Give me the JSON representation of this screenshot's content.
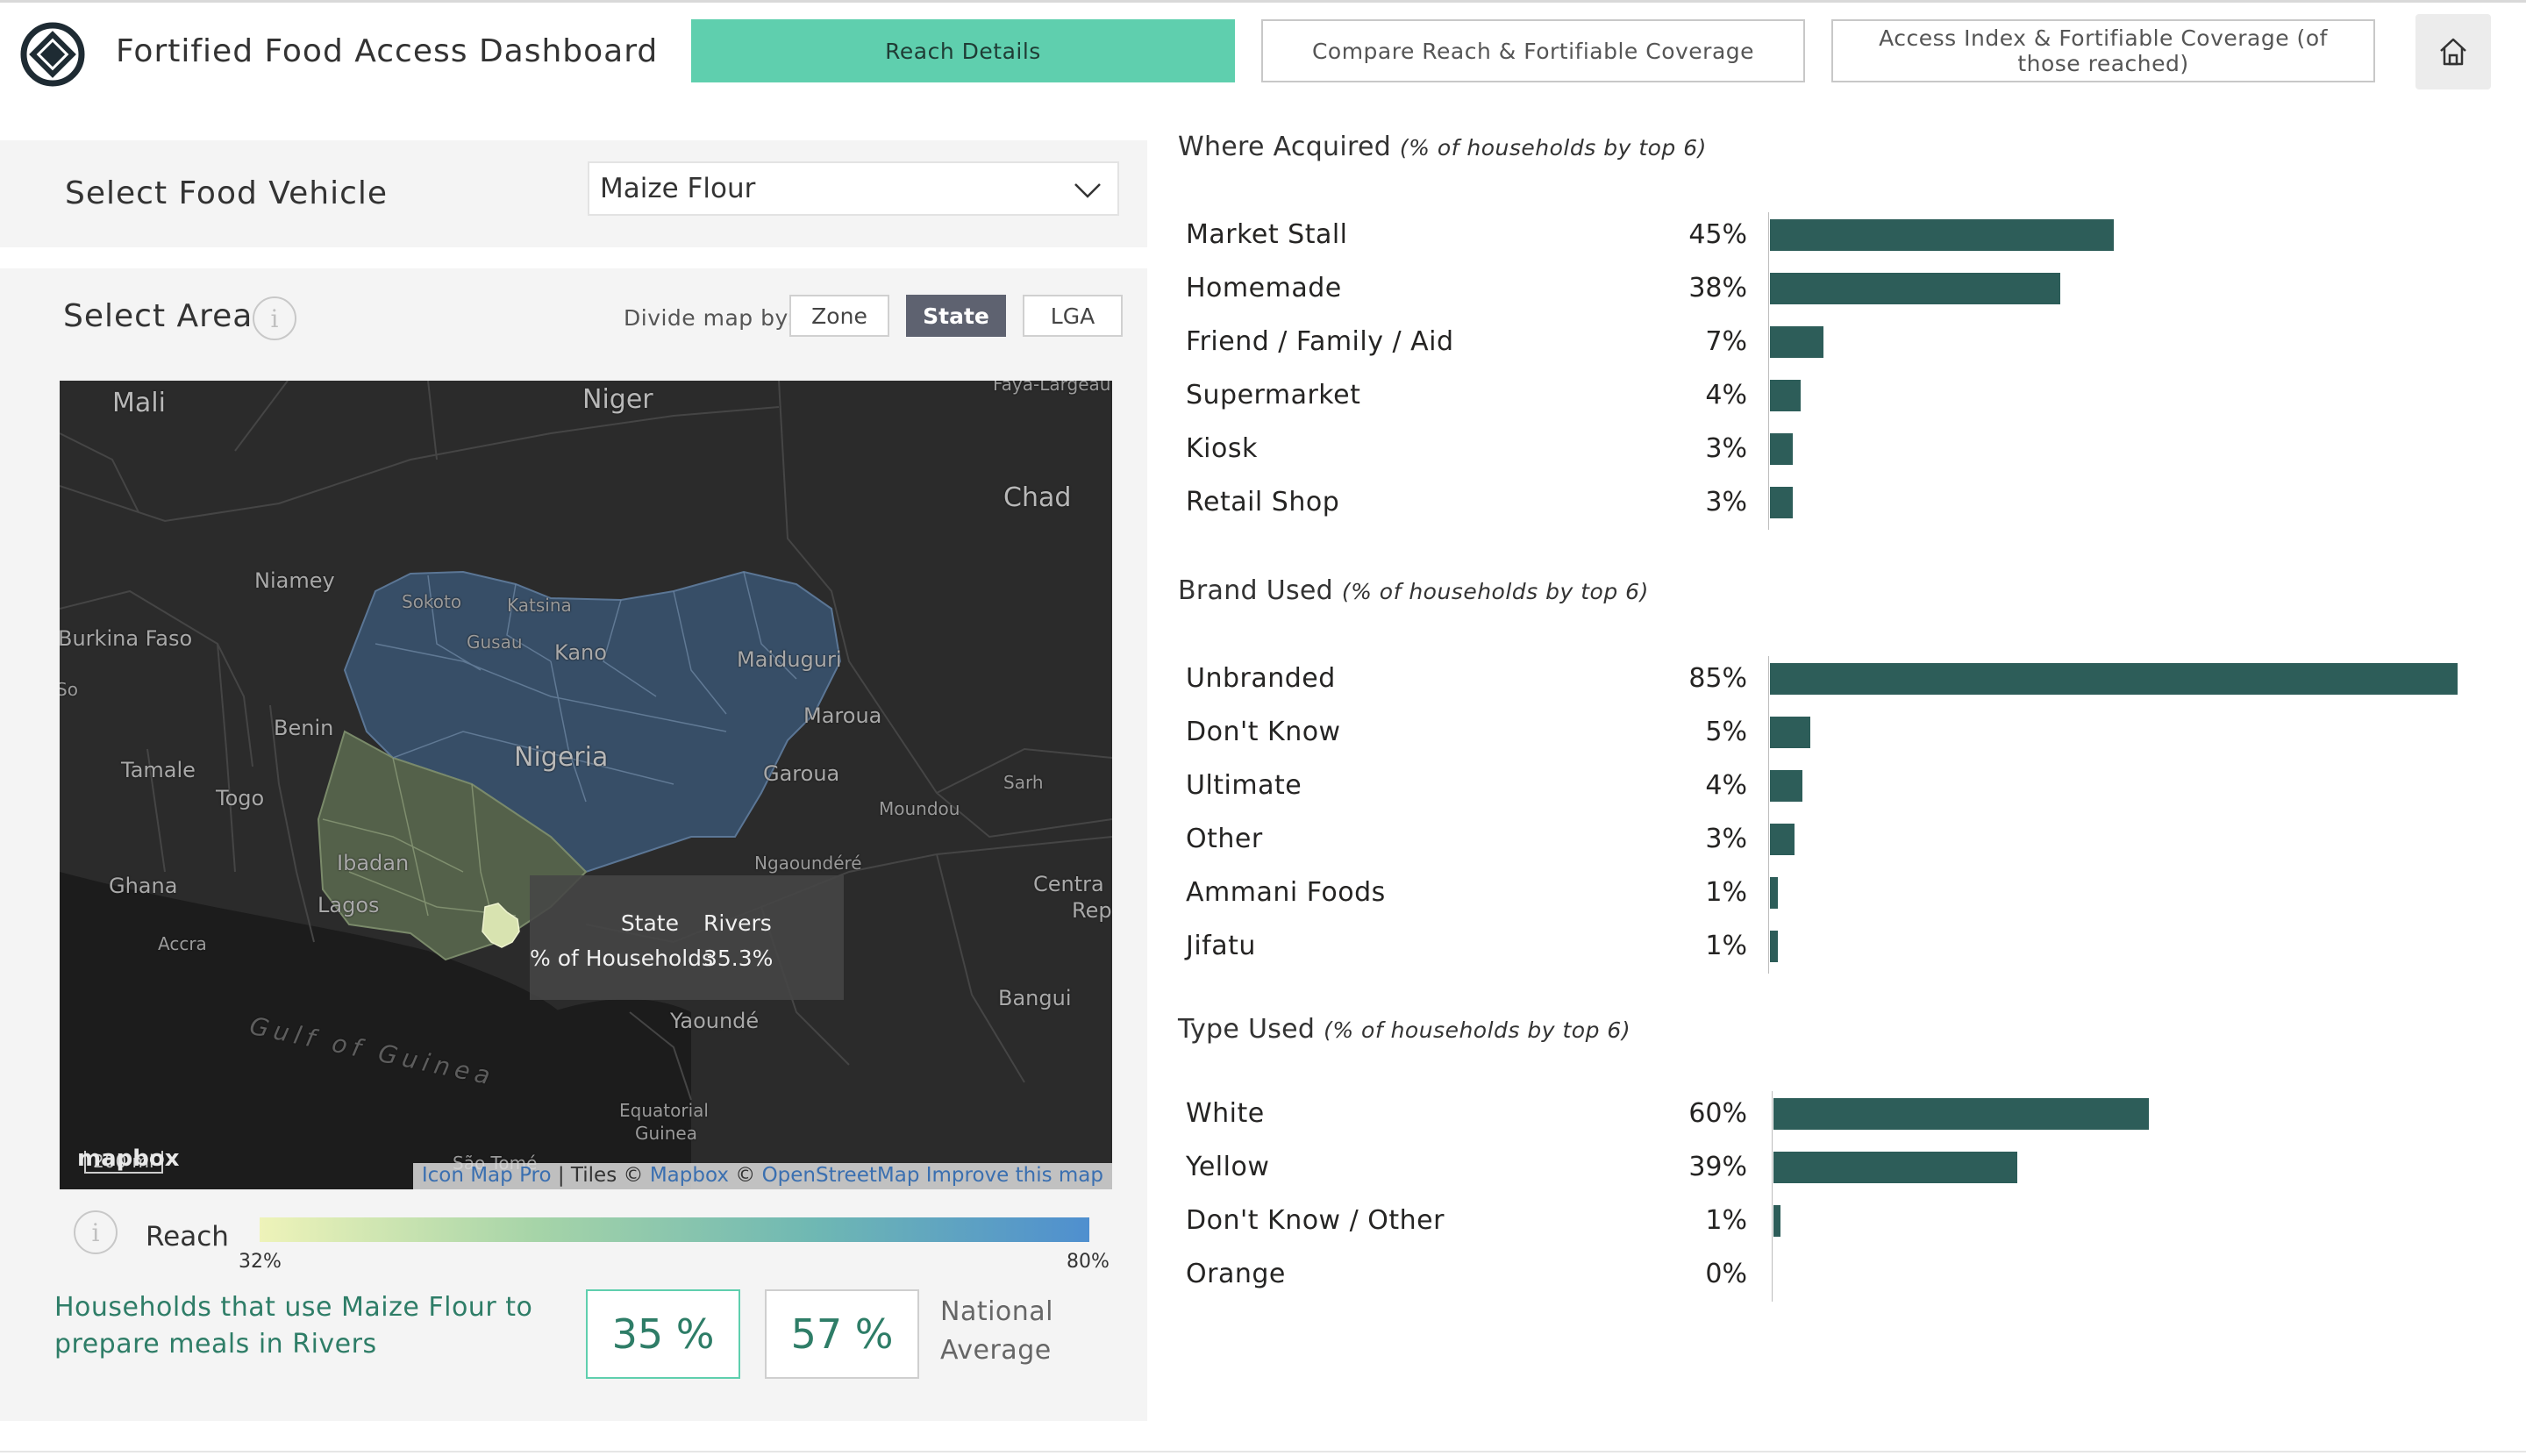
{
  "header": {
    "title": "Fortified Food Access Dashboard",
    "tabs": [
      {
        "label": "Reach Details",
        "active": true
      },
      {
        "label": "Compare Reach & Fortifiable Coverage",
        "active": false
      },
      {
        "label": "Access Index & Fortifiable Coverage (of those reached)",
        "active": false
      }
    ],
    "home_icon": "home-icon",
    "logo_icon": "logo-icon"
  },
  "vehicle": {
    "label": "Select Food Vehicle",
    "selected": "Maize Flour"
  },
  "area": {
    "label": "Select Area",
    "divide_label": "Divide map by:",
    "divide_options": [
      {
        "label": "Zone",
        "active": false
      },
      {
        "label": "State",
        "active": true
      },
      {
        "label": "LGA",
        "active": false
      }
    ]
  },
  "map": {
    "labels": {
      "mali": "Mali",
      "niger": "Niger",
      "chad": "Chad",
      "niamey": "Niamey",
      "burkina": "Burkina Faso",
      "benin": "Benin",
      "tamale": "Tamale",
      "togo": "Togo",
      "ghana": "Ghana",
      "accra": "Accra",
      "sokoto": "Sokoto",
      "katsina": "Katsina",
      "gusau": "Gusau",
      "kano": "Kano",
      "maiduguri": "Maiduguri",
      "maroua": "Maroua",
      "nigeria": "Nigeria",
      "garoua": "Garoua",
      "moundou": "Moundou",
      "sarh": "Sarh",
      "ibadan": "Ibadan",
      "lagos": "Lagos",
      "ngaoundere": "Ngaoundéré",
      "central": "Centra",
      "rep": "Rep",
      "bangui": "Bangui",
      "yaounde": "Yaoundé",
      "gulf": "Gulf of Guinea",
      "eq1": "Equatorial",
      "eq2": "Guinea",
      "saotome": "São Tomé",
      "largeau": "Faya-Largeau",
      "so": "So"
    },
    "tooltip": {
      "state_key": "State",
      "state_val": "Rivers",
      "hh_key": "% of Households",
      "hh_val": "35.3%"
    },
    "mapbox": "mapbox",
    "scale": "200 mi",
    "attribution": {
      "icon_map_pro": "Icon Map Pro",
      "tiles": " | Tiles © ",
      "mapbox": "Mapbox",
      "copy": " © ",
      "osm": "OpenStreetMap",
      "improve": "Improve this map"
    }
  },
  "legend": {
    "label": "Reach",
    "min": "32%",
    "max": "80%",
    "colors": [
      "#eef3b9",
      "#a6d4a8",
      "#6fb8b3",
      "#4f8fcf"
    ]
  },
  "stats": {
    "description": "Households that use Maize Flour to prepare meals in Rivers",
    "value": "35 %",
    "national_value": "57 %",
    "national_label": "National Average"
  },
  "colors": {
    "accent": "#5fcfae",
    "bar": "#2d5d59",
    "text_green": "#2e7d67"
  },
  "chart_data": [
    {
      "type": "bar",
      "title": "Where Acquired",
      "subtitle": "(% of households by top 6)",
      "categories": [
        "Market Stall",
        "Homemade",
        "Friend / Family / Aid",
        "Supermarket",
        "Kiosk",
        "Retail Shop"
      ],
      "values": [
        45,
        38,
        7,
        4,
        3,
        3
      ],
      "value_labels": [
        "45%",
        "38%",
        "7%",
        "4%",
        "3%",
        "3%"
      ],
      "xlim": [
        0,
        90
      ]
    },
    {
      "type": "bar",
      "title": "Brand Used",
      "subtitle": "(% of households by top 6)",
      "categories": [
        "Unbranded",
        "Don't Know",
        "Ultimate",
        "Other",
        "Ammani Foods",
        "Jifatu"
      ],
      "values": [
        85,
        5,
        4,
        3,
        1,
        1
      ],
      "value_labels": [
        "85%",
        "5%",
        "4%",
        "3%",
        "1%",
        "1%"
      ],
      "xlim": [
        0,
        85
      ]
    },
    {
      "type": "bar",
      "title": "Type Used",
      "subtitle": "(% of households by top 6)",
      "categories": [
        "White",
        "Yellow",
        "Don't Know / Other",
        "Orange"
      ],
      "values": [
        60,
        39,
        1,
        0
      ],
      "value_labels": [
        "60%",
        "39%",
        "1%",
        "0%"
      ],
      "xlim": [
        0,
        110
      ]
    }
  ]
}
